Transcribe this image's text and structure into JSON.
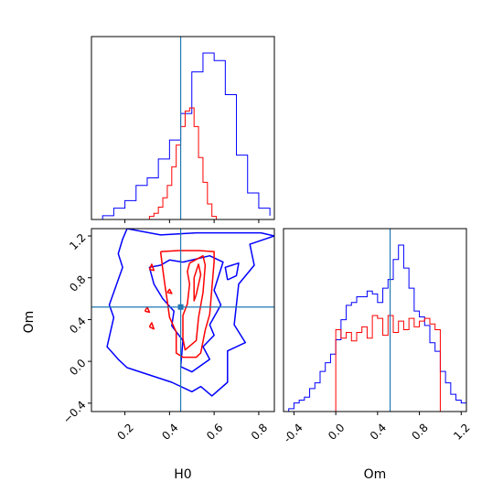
{
  "chart_data": {
    "type": "corner",
    "parameters": [
      "H0",
      "Om"
    ],
    "truths": {
      "H0": 0.45,
      "Om": 0.52
    },
    "colors": {
      "series_a": "#0000ff",
      "series_b": "#ff0000",
      "truth": "#1f77b4"
    },
    "series": [
      {
        "color_key": "series_a"
      },
      {
        "color_key": "series_b"
      }
    ],
    "panels": {
      "H0_hist": {
        "x_range": [
          0.05,
          0.87
        ],
        "grid": false,
        "blue_histogram": {
          "bin_edges": [
            0.05,
            0.1,
            0.15,
            0.2,
            0.25,
            0.3,
            0.35,
            0.4,
            0.45,
            0.5,
            0.55,
            0.6,
            0.65,
            0.7,
            0.75,
            0.8,
            0.85
          ],
          "counts": [
            0,
            1,
            3,
            5,
            9,
            11,
            16,
            21,
            28,
            39,
            44,
            42,
            33,
            17,
            7,
            3,
            1
          ],
          "note": "relative heights"
        },
        "red_histogram": {
          "bin_edges": [
            0.31,
            0.33,
            0.35,
            0.37,
            0.39,
            0.41,
            0.43,
            0.45,
            0.47,
            0.49,
            0.51,
            0.53,
            0.55,
            0.57,
            0.59,
            0.61
          ],
          "counts": [
            1,
            2,
            4,
            7,
            11,
            17,
            24,
            30,
            35,
            36,
            30,
            20,
            12,
            5,
            1
          ],
          "note": "relative heights"
        }
      },
      "Om_hist": {
        "x_range": [
          -0.5,
          1.25
        ],
        "x_ticks": [
          "-0.4",
          "0.0",
          "0.4",
          "0.8",
          "1.2"
        ],
        "x_label": "Om",
        "blue_histogram": {
          "bin_edges": [
            -0.5,
            -0.45,
            -0.4,
            -0.35,
            -0.3,
            -0.25,
            -0.2,
            -0.15,
            -0.1,
            -0.05,
            0.0,
            0.05,
            0.1,
            0.15,
            0.2,
            0.25,
            0.3,
            0.35,
            0.4,
            0.45,
            0.5,
            0.55,
            0.6,
            0.65,
            0.7,
            0.75,
            0.8,
            0.85,
            0.9,
            0.95,
            1.0,
            1.05,
            1.1,
            1.15,
            1.2,
            1.25
          ],
          "counts": [
            0,
            1,
            3,
            4,
            5,
            8,
            10,
            14,
            17,
            20,
            25,
            32,
            37,
            38,
            40,
            40,
            42,
            41,
            38,
            43,
            46,
            53,
            58,
            50,
            43,
            35,
            33,
            30,
            24,
            21,
            14,
            10,
            6,
            4,
            3
          ],
          "note": "relative heights"
        },
        "red_histogram": {
          "bin_edges": [
            0.0,
            0.05,
            0.1,
            0.15,
            0.2,
            0.25,
            0.3,
            0.35,
            0.4,
            0.45,
            0.5,
            0.55,
            0.6,
            0.65,
            0.7,
            0.75,
            0.8,
            0.85,
            0.9,
            0.95,
            1.0
          ],
          "counts": [
            29,
            26,
            28,
            25,
            28,
            30,
            26,
            34,
            33,
            27,
            34,
            28,
            32,
            29,
            33,
            30,
            32,
            33,
            31,
            29
          ],
          "note": "relative heights; uniform-like"
        }
      },
      "H0_Om_contour": {
        "x_range": [
          0.05,
          0.87
        ],
        "y_range": [
          -0.48,
          1.27
        ],
        "x_ticks": [
          "0.2",
          "0.4",
          "0.6",
          "0.8"
        ],
        "y_ticks": [
          "−0.4",
          "0.0",
          "0.4",
          "0.8",
          "1.2"
        ],
        "x_label": "H0",
        "y_label": "Om",
        "blue_contours": [
          [
            [
              0.21,
              1.27
            ],
            [
              0.36,
              1.21
            ],
            [
              0.52,
              1.23
            ],
            [
              0.66,
              1.23
            ],
            [
              0.81,
              1.23
            ],
            [
              0.87,
              1.2
            ],
            [
              0.76,
              1.12
            ],
            [
              0.78,
              0.92
            ],
            [
              0.71,
              0.74
            ],
            [
              0.69,
              0.35
            ],
            [
              0.74,
              0.18
            ],
            [
              0.66,
              0.1
            ],
            [
              0.66,
              -0.2
            ],
            [
              0.59,
              -0.33
            ],
            [
              0.54,
              -0.24
            ],
            [
              0.5,
              -0.29
            ],
            [
              0.41,
              -0.2
            ],
            [
              0.21,
              -0.06
            ],
            [
              0.17,
              0.02
            ],
            [
              0.12,
              0.14
            ],
            [
              0.15,
              0.42
            ],
            [
              0.13,
              0.54
            ],
            [
              0.19,
              0.9
            ],
            [
              0.17,
              1.03
            ],
            [
              0.19,
              1.17
            ],
            [
              0.21,
              1.27
            ]
          ],
          [
            [
              0.46,
              0.95
            ],
            [
              0.58,
              1.01
            ],
            [
              0.64,
              0.95
            ],
            [
              0.6,
              0.68
            ],
            [
              0.63,
              0.54
            ],
            [
              0.58,
              0.35
            ],
            [
              0.6,
              0.25
            ],
            [
              0.55,
              0.14
            ],
            [
              0.58,
              0.02
            ],
            [
              0.5,
              -0.1
            ],
            [
              0.45,
              -0.05
            ],
            [
              0.46,
              0.2
            ],
            [
              0.41,
              0.34
            ],
            [
              0.42,
              0.48
            ],
            [
              0.37,
              0.6
            ],
            [
              0.33,
              0.74
            ],
            [
              0.31,
              0.9
            ],
            [
              0.36,
              0.92
            ],
            [
              0.4,
              0.97
            ],
            [
              0.46,
              0.95
            ]
          ],
          [
            [
              0.66,
              0.78
            ],
            [
              0.7,
              0.82
            ],
            [
              0.71,
              0.94
            ],
            [
              0.65,
              0.9
            ],
            [
              0.66,
              0.78
            ]
          ]
        ],
        "red_contours": [
          [
            [
              0.36,
              1.05
            ],
            [
              0.44,
              1.06
            ],
            [
              0.53,
              1.06
            ],
            [
              0.6,
              1.05
            ],
            [
              0.6,
              0.95
            ],
            [
              0.59,
              0.7
            ],
            [
              0.58,
              0.45
            ],
            [
              0.56,
              0.3
            ],
            [
              0.54,
              0.08
            ],
            [
              0.52,
              0.04
            ],
            [
              0.46,
              0.04
            ],
            [
              0.43,
              0.08
            ],
            [
              0.43,
              0.28
            ],
            [
              0.4,
              0.42
            ],
            [
              0.39,
              0.58
            ],
            [
              0.38,
              0.72
            ],
            [
              0.37,
              0.88
            ],
            [
              0.36,
              1.05
            ]
          ],
          [
            [
              0.49,
              0.94
            ],
            [
              0.55,
              1.01
            ],
            [
              0.56,
              0.92
            ],
            [
              0.55,
              0.66
            ],
            [
              0.53,
              0.42
            ],
            [
              0.52,
              0.2
            ],
            [
              0.47,
              0.11
            ],
            [
              0.46,
              0.22
            ],
            [
              0.46,
              0.44
            ],
            [
              0.48,
              0.55
            ],
            [
              0.49,
              0.74
            ],
            [
              0.48,
              0.86
            ],
            [
              0.49,
              0.94
            ]
          ],
          [
            [
              0.51,
              0.8
            ],
            [
              0.53,
              0.93
            ],
            [
              0.54,
              0.83
            ],
            [
              0.52,
              0.64
            ],
            [
              0.51,
              0.58
            ],
            [
              0.51,
              0.8
            ]
          ],
          [
            [
              0.31,
              0.88
            ],
            [
              0.32,
              0.93
            ],
            [
              0.33,
              0.87
            ],
            [
              0.31,
              0.88
            ]
          ],
          [
            [
              0.29,
              0.48
            ],
            [
              0.3,
              0.52
            ],
            [
              0.31,
              0.47
            ],
            [
              0.29,
              0.48
            ]
          ],
          [
            [
              0.39,
              0.66
            ],
            [
              0.4,
              0.69
            ],
            [
              0.41,
              0.65
            ],
            [
              0.39,
              0.66
            ]
          ],
          [
            [
              0.31,
              0.33
            ],
            [
              0.32,
              0.37
            ],
            [
              0.33,
              0.31
            ],
            [
              0.31,
              0.33
            ]
          ]
        ]
      }
    }
  }
}
